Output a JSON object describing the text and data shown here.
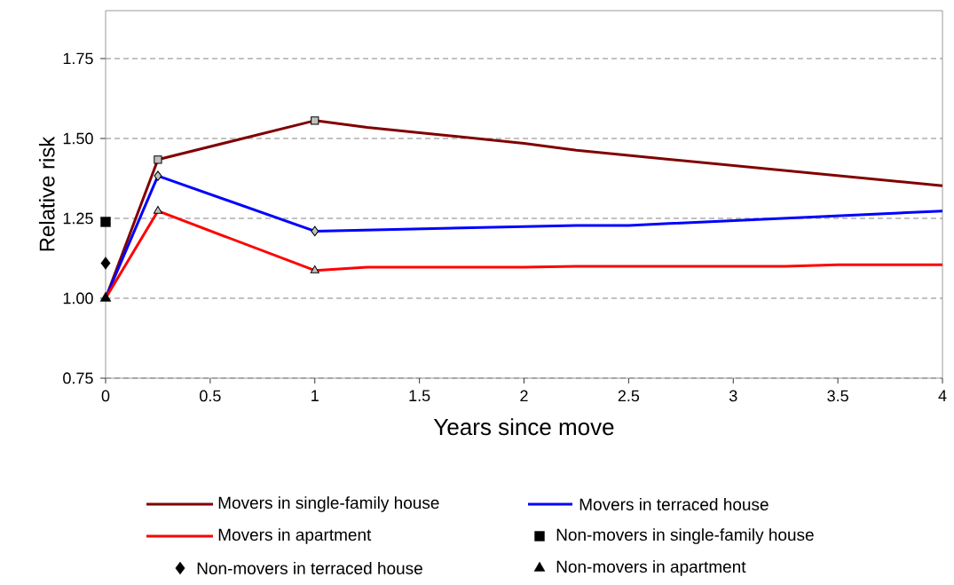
{
  "chart_data": {
    "type": "line",
    "xlabel": "Years since move",
    "ylabel": "Relative risk",
    "xlim": [
      0,
      4
    ],
    "ylim": [
      0.75,
      1.9
    ],
    "xticks": [
      0,
      0.5,
      1,
      1.5,
      2,
      2.5,
      3,
      3.5,
      4
    ],
    "yticks": [
      0.75,
      {
        "value": 1,
        "label": "1.00"
      },
      {
        "value": 1.25,
        "label": "1.25"
      },
      {
        "value": 1.5,
        "label": "1.50"
      },
      {
        "value": 1.75,
        "label": "1.75"
      }
    ],
    "grid": "y",
    "legend": "bottom",
    "series": [
      {
        "name": "Movers in single-family house",
        "color": "#800000",
        "marker": "none",
        "x": [
          0,
          0.25,
          1,
          1.25,
          1.5,
          2,
          2.25,
          4
        ],
        "values": [
          1.0,
          1.434,
          1.556,
          1.535,
          1.518,
          1.485,
          1.463,
          1.352
        ]
      },
      {
        "name": "Movers in terraced house",
        "color": "#0000ff",
        "marker": "none",
        "x": [
          0,
          0.25,
          1,
          2.25,
          2.5,
          4
        ],
        "values": [
          1.0,
          1.383,
          1.21,
          1.228,
          1.228,
          1.273
        ]
      },
      {
        "name": "Movers in apartment",
        "color": "#ff0000",
        "marker": "none",
        "x": [
          0,
          0.25,
          1,
          1.25,
          2,
          2.25,
          3.25,
          3.5,
          4
        ],
        "values": [
          1.0,
          1.273,
          1.087,
          1.097,
          1.097,
          1.1,
          1.1,
          1.105,
          1.105
        ]
      },
      {
        "name": "Non-movers in single-family house",
        "type": "scatter",
        "color": "#000000",
        "marker": "square",
        "x": [
          0
        ],
        "values": [
          1.239
        ]
      },
      {
        "name": "Non-movers in terraced house",
        "type": "scatter",
        "color": "#000000",
        "marker": "diamond",
        "x": [
          0
        ],
        "values": [
          1.11
        ]
      },
      {
        "name": "Non-movers in apartment",
        "type": "scatter",
        "color": "#000000",
        "marker": "triangle",
        "x": [
          0
        ],
        "values": [
          1.0
        ]
      },
      {
        "type": "scatter",
        "color": "#c0c0c0",
        "marker": "square",
        "x": [
          0.25,
          1
        ],
        "values": [
          1.434,
          1.556
        ]
      },
      {
        "type": "scatter",
        "color": "#c0c0c0",
        "marker": "diamond",
        "x": [
          0.25,
          1
        ],
        "values": [
          1.383,
          1.21
        ]
      },
      {
        "type": "scatter",
        "color": "#c0c0c0",
        "marker": "triangle",
        "x": [
          0.25,
          1
        ],
        "values": [
          1.273,
          1.087
        ]
      }
    ]
  }
}
